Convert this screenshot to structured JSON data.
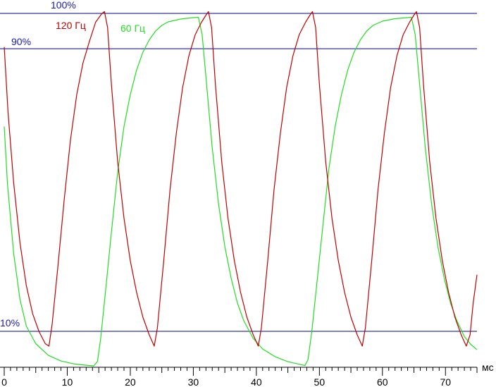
{
  "chart_data": {
    "type": "line",
    "xlabel": "мс",
    "ylabel": "",
    "xlim": [
      0,
      75
    ],
    "ylim": [
      0,
      100
    ],
    "xticks": [
      0,
      10,
      20,
      30,
      40,
      50,
      60,
      70
    ],
    "grid": false,
    "legend": "top-left, inline labels",
    "reference_lines": [
      {
        "label": "100%",
        "y": 100,
        "color": "#00008b"
      },
      {
        "label": "90%",
        "y": 90,
        "color": "#00008b"
      },
      {
        "label": "10%",
        "y": 10,
        "color": "#00008b"
      }
    ],
    "series": [
      {
        "name": "120 Гц",
        "color": "#c00000",
        "points": [
          [
            0,
            90.5
          ],
          [
            0.6,
            72
          ],
          [
            1.5,
            52
          ],
          [
            2.5,
            35
          ],
          [
            3.5,
            23
          ],
          [
            4.5,
            15
          ],
          [
            5.5,
            10
          ],
          [
            6.5,
            6.5
          ],
          [
            7.1,
            5.8
          ],
          [
            7.6,
            12
          ],
          [
            8.5,
            28
          ],
          [
            9.5,
            47
          ],
          [
            10.5,
            64
          ],
          [
            11.5,
            77
          ],
          [
            12.5,
            86
          ],
          [
            13.5,
            92
          ],
          [
            14.5,
            97.5
          ],
          [
            15.5,
            100
          ],
          [
            15.9,
            100.5
          ],
          [
            16.4,
            96
          ],
          [
            17,
            80
          ],
          [
            18,
            58
          ],
          [
            19,
            42
          ],
          [
            20,
            30
          ],
          [
            21,
            21
          ],
          [
            22,
            14
          ],
          [
            23,
            9
          ],
          [
            23.8,
            5.8
          ],
          [
            24.3,
            11
          ],
          [
            25.3,
            30
          ],
          [
            26.3,
            50
          ],
          [
            27.3,
            66
          ],
          [
            28.3,
            79
          ],
          [
            29.3,
            88
          ],
          [
            30.3,
            94
          ],
          [
            31.3,
            97.5
          ],
          [
            32,
            99.5
          ],
          [
            32.4,
            100.5
          ],
          [
            32.9,
            96
          ],
          [
            33.5,
            80
          ],
          [
            34.5,
            58
          ],
          [
            35.5,
            42
          ],
          [
            36.5,
            30
          ],
          [
            37.5,
            21
          ],
          [
            38.5,
            14
          ],
          [
            39.5,
            9
          ],
          [
            40.3,
            5.8
          ],
          [
            40.8,
            11
          ],
          [
            41.8,
            30
          ],
          [
            42.8,
            50
          ],
          [
            43.8,
            66
          ],
          [
            44.8,
            79
          ],
          [
            45.8,
            88
          ],
          [
            46.8,
            94
          ],
          [
            47.8,
            97.5
          ],
          [
            48.5,
            99.5
          ],
          [
            48.9,
            100.5
          ],
          [
            49.4,
            96
          ],
          [
            50,
            80
          ],
          [
            51,
            58
          ],
          [
            52,
            42
          ],
          [
            53,
            30
          ],
          [
            54,
            21
          ],
          [
            55,
            14
          ],
          [
            56,
            9
          ],
          [
            56.8,
            5.8
          ],
          [
            57.3,
            11
          ],
          [
            58.3,
            30
          ],
          [
            59.3,
            50
          ],
          [
            60.3,
            66
          ],
          [
            61.3,
            79
          ],
          [
            62.3,
            88
          ],
          [
            63.3,
            94
          ],
          [
            64.3,
            97.5
          ],
          [
            65,
            99.5
          ],
          [
            65.4,
            100.5
          ],
          [
            65.9,
            96
          ],
          [
            66.5,
            80
          ],
          [
            67.5,
            58
          ],
          [
            68.5,
            42
          ],
          [
            69.5,
            30
          ],
          [
            70.5,
            21
          ],
          [
            71.5,
            14
          ],
          [
            72.5,
            9
          ],
          [
            73.3,
            5.8
          ],
          [
            73.9,
            9
          ],
          [
            74.4,
            18
          ],
          [
            75,
            26
          ]
        ]
      },
      {
        "name": "60 Гц",
        "color": "#22dd22",
        "points": [
          [
            0,
            68
          ],
          [
            0.5,
            52
          ],
          [
            1.5,
            32
          ],
          [
            2.5,
            19
          ],
          [
            3.5,
            11.5
          ],
          [
            5,
            6.5
          ],
          [
            7,
            3.2
          ],
          [
            9,
            1.6
          ],
          [
            11,
            0.8
          ],
          [
            13,
            0.4
          ],
          [
            14.2,
            0.2
          ],
          [
            14.8,
            1.5
          ],
          [
            15.3,
            8
          ],
          [
            16,
            20
          ],
          [
            17,
            38
          ],
          [
            18,
            55
          ],
          [
            19,
            68
          ],
          [
            20,
            77
          ],
          [
            21,
            84
          ],
          [
            22,
            89
          ],
          [
            23,
            92.5
          ],
          [
            24,
            95
          ],
          [
            25,
            96.6
          ],
          [
            26,
            97.6
          ],
          [
            28,
            98.4
          ],
          [
            30,
            98.8
          ],
          [
            30.8,
            98.9
          ],
          [
            31.4,
            94
          ],
          [
            32,
            82
          ],
          [
            33,
            62
          ],
          [
            34,
            46
          ],
          [
            35,
            34
          ],
          [
            36,
            25
          ],
          [
            37,
            18
          ],
          [
            38,
            13
          ],
          [
            39.5,
            8
          ],
          [
            41,
            5
          ],
          [
            43,
            2.8
          ],
          [
            45,
            1.4
          ],
          [
            47,
            0.6
          ],
          [
            47.7,
            0.3
          ],
          [
            48.2,
            2
          ],
          [
            48.8,
            10
          ],
          [
            49.5,
            22
          ],
          [
            50.5,
            39
          ],
          [
            51.5,
            56
          ],
          [
            52.5,
            68
          ],
          [
            53.5,
            77
          ],
          [
            54.5,
            84
          ],
          [
            55.5,
            89
          ],
          [
            56.5,
            92.5
          ],
          [
            57.5,
            95
          ],
          [
            58.5,
            96.6
          ],
          [
            60,
            97.8
          ],
          [
            62,
            98.5
          ],
          [
            64,
            98.8
          ],
          [
            64.6,
            98.9
          ],
          [
            65.2,
            94
          ],
          [
            65.8,
            82
          ],
          [
            66.8,
            62
          ],
          [
            67.8,
            46
          ],
          [
            68.8,
            34
          ],
          [
            69.8,
            25
          ],
          [
            70.8,
            18
          ],
          [
            71.8,
            13
          ],
          [
            73,
            8.5
          ],
          [
            74,
            6.3
          ],
          [
            75,
            4.8
          ]
        ]
      }
    ]
  }
}
